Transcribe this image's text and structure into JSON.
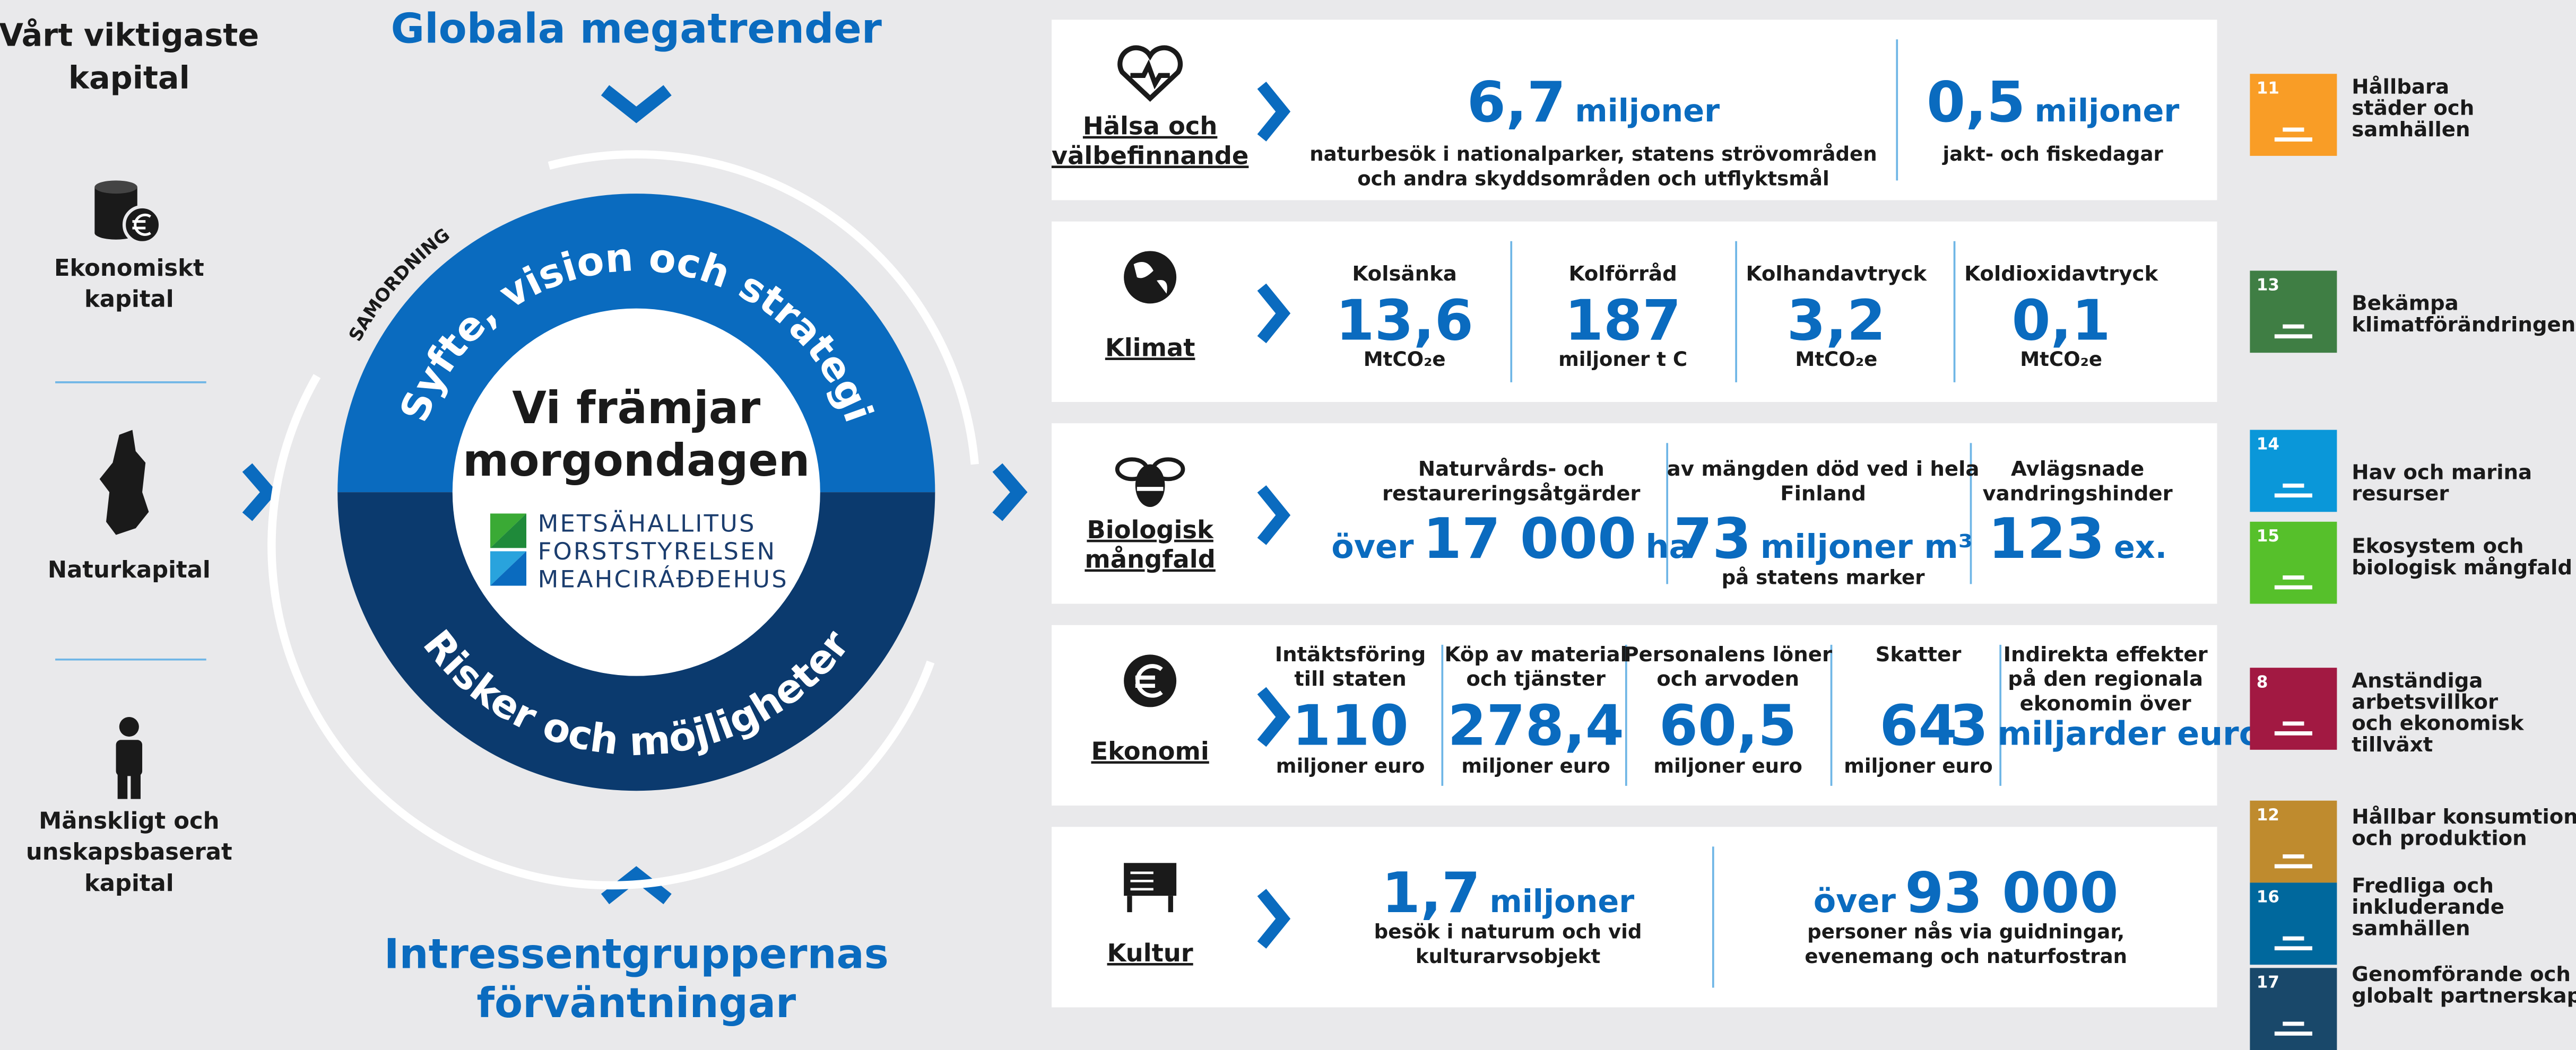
{
  "capitals": {
    "title": [
      "Vårt viktigaste",
      "kapital"
    ],
    "items": [
      [
        "Ekonomiskt",
        "kapital"
      ],
      [
        "Naturkapital"
      ],
      [
        "Mänskligt och",
        "unskapsbaserat",
        "kapital"
      ]
    ]
  },
  "center": {
    "top": [
      "Globala megatrender"
    ],
    "bottom": [
      "Intressentgruppernas",
      "förväntningar"
    ],
    "samordning": "SAMORDNING",
    "ring_top": "Syfte, vision och strategi",
    "ring_bottom": "Risker och möjligheter",
    "core": [
      "Vi främjar",
      "morgondagen"
    ],
    "logo": [
      "METSÄHALLITUS",
      "FORSTSTYRELSEN",
      "MEAHCIRÁĐĐEHUS"
    ]
  },
  "rows": [
    {
      "label": [
        "Hälsa och",
        "välbefinnande"
      ],
      "stats": [
        {
          "value": "6,7",
          "unit": "miljoner",
          "desc": [
            "naturbesök i nationalparker, statens strövområden",
            "och andra skyddsområden och utflyktsmål"
          ]
        },
        {
          "value": "0,5",
          "unit": "miljoner",
          "desc": [
            "jakt- och fiskedagar"
          ]
        }
      ]
    },
    {
      "label": [
        "Klimat"
      ],
      "stats": [
        {
          "label": [
            "Kolsänka"
          ],
          "value": "13,6",
          "desc": [
            "MtCO₂e"
          ]
        },
        {
          "label": [
            "Kolförråd"
          ],
          "value": "187",
          "desc": [
            "miljoner t C"
          ]
        },
        {
          "label": [
            "Kolhandavtryck"
          ],
          "value": "3,2",
          "desc": [
            "MtCO₂e"
          ]
        },
        {
          "label": [
            "Koldioxidavtryck"
          ],
          "value": "0,1",
          "desc": [
            "MtCO₂e"
          ]
        }
      ]
    },
    {
      "label": [
        "Biologisk",
        "mångfald"
      ],
      "stats": [
        {
          "label": [
            "Naturvårds- och",
            "restaureringsåtgärder"
          ],
          "prefix": "över",
          "value": "17 000",
          "unit": "ha"
        },
        {
          "label": [
            "av mängden död ved i hela",
            "Finland"
          ],
          "value": "73",
          "unit": "miljoner m³",
          "desc": [
            "på statens marker"
          ]
        },
        {
          "label": [
            "Avlägsnade",
            "vandringshinder"
          ],
          "value": "123",
          "unit": "ex."
        }
      ]
    },
    {
      "label": [
        "Ekonomi"
      ],
      "stats": [
        {
          "label": [
            "Intäktsföring",
            "till staten"
          ],
          "value": "110",
          "desc": [
            "miljoner euro"
          ]
        },
        {
          "label": [
            "Köp av material",
            "och tjänster"
          ],
          "value": "278,4",
          "desc": [
            "miljoner euro"
          ]
        },
        {
          "label": [
            "Personalens löner",
            "och arvoden"
          ],
          "value": "60,5",
          "desc": [
            "miljoner euro"
          ]
        },
        {
          "label": [
            "Skatter"
          ],
          "value": "64",
          "desc": [
            "miljoner euro"
          ]
        },
        {
          "label": [
            "Indirekta effekter",
            "på den regionala",
            "ekonomin över"
          ],
          "value": "3",
          "unit": "miljarder euro"
        }
      ]
    },
    {
      "label": [
        "Kultur"
      ],
      "stats": [
        {
          "value": "1,7",
          "unit": "miljoner",
          "desc": [
            "besök i naturum och vid",
            "kulturarvsobjekt"
          ]
        },
        {
          "prefix": "över",
          "value": "93 000",
          "desc": [
            "personer nås via guidningar,",
            "evenemang och naturfostran"
          ]
        }
      ]
    }
  ],
  "goals": [
    {
      "number": "11",
      "color": "#f99d26",
      "label": [
        "Hållbara",
        "städer och",
        "samhällen"
      ]
    },
    {
      "number": "13",
      "color": "#3f7e44",
      "label": [
        "Bekämpa",
        "klimatförändringen"
      ]
    },
    {
      "number": "14",
      "color": "#0a97d9",
      "label": [
        "Hav och marina",
        "resurser"
      ]
    },
    {
      "number": "15",
      "color": "#56c02b",
      "label": [
        "Ekosystem och",
        "biologisk mångfald"
      ]
    },
    {
      "number": "8",
      "color": "#a21942",
      "label": [
        "Anständiga",
        "arbetsvillkor",
        "och ekonomisk",
        "tillväxt"
      ]
    },
    {
      "number": "12",
      "color": "#bf8b2e",
      "label": [
        "Hållbar konsumtion",
        "och produktion"
      ]
    },
    {
      "number": "16",
      "color": "#00689d",
      "label": [
        "Fredliga och",
        "inkluderande",
        "samhällen"
      ]
    },
    {
      "number": "17",
      "color": "#19486a",
      "label": [
        "Genomförande och",
        "globalt partnerskap"
      ]
    }
  ]
}
